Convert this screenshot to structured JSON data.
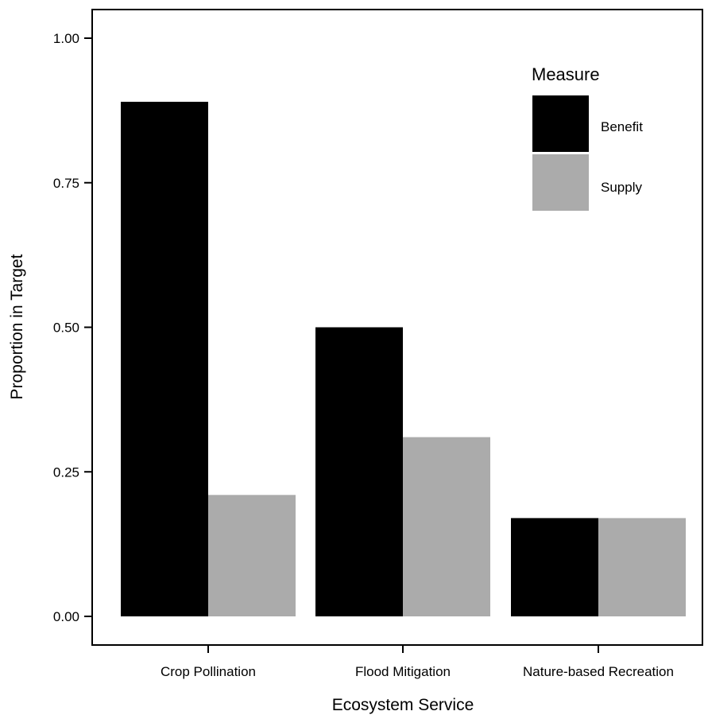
{
  "chart_data": {
    "type": "bar",
    "title": "",
    "xlabel": "Ecosystem Service",
    "ylabel": "Proportion in Target",
    "categories": [
      "Crop Pollination",
      "Flood Mitigation",
      "Nature-based Recreation"
    ],
    "series": [
      {
        "name": "Benefit",
        "values": [
          0.89,
          0.5,
          0.17
        ],
        "color": "#000000"
      },
      {
        "name": "Supply",
        "values": [
          0.21,
          0.31,
          0.17
        ],
        "color": "#ababab"
      }
    ],
    "ylim": [
      0,
      1.05
    ],
    "yticks": [
      0.0,
      0.25,
      0.5,
      0.75,
      1.0
    ],
    "ytick_labels": [
      "0.00",
      "0.25",
      "0.50",
      "0.75",
      "1.00"
    ],
    "grid": false,
    "legend": {
      "title": "Measure",
      "placement": "top-right inside"
    }
  }
}
